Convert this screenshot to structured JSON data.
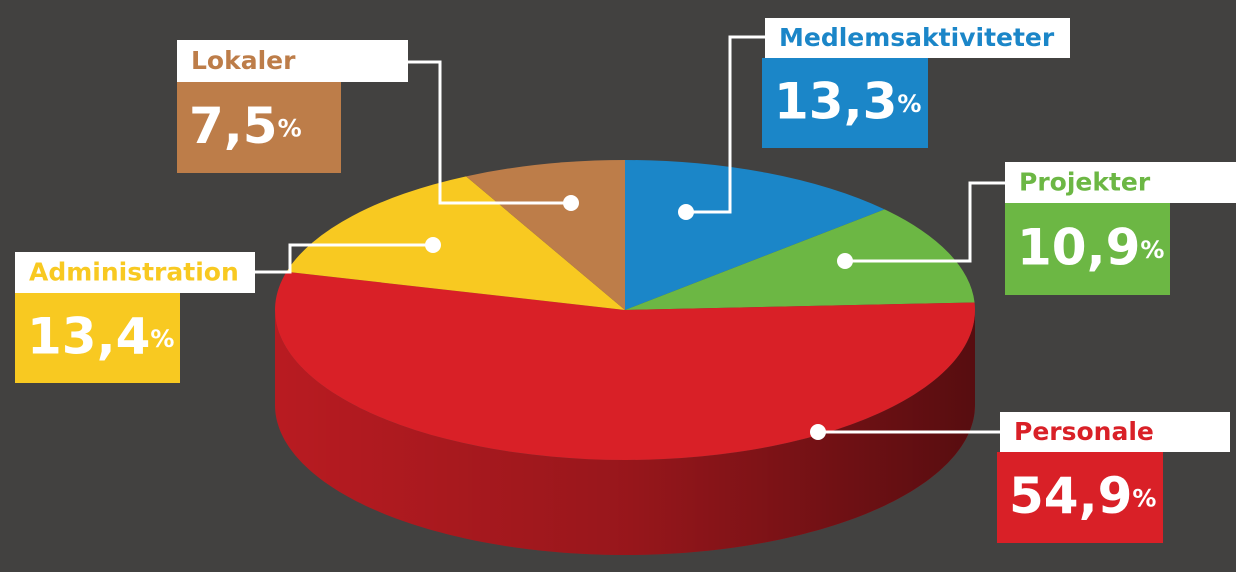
{
  "chart_data": {
    "type": "pie",
    "categories": [
      "Medlemsaktiviteter",
      "Projekter",
      "Personale",
      "Administration",
      "Lokaler"
    ],
    "values": [
      13.3,
      10.9,
      54.9,
      13.4,
      7.5
    ],
    "value_labels": [
      "13,3%",
      "10,9%",
      "54,9%",
      "13,4%",
      "7,5%"
    ],
    "colors": [
      "#1b86c8",
      "#6cb744",
      "#d92027",
      "#f8c921",
      "#bd7d49"
    ]
  }
}
